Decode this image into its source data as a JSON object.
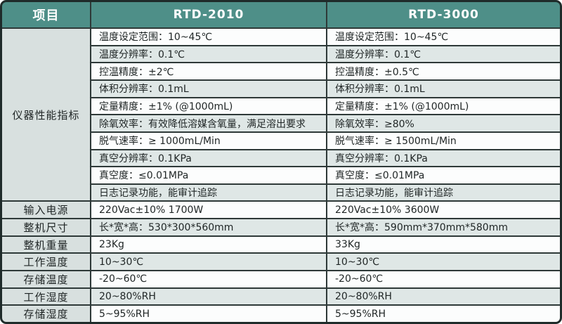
{
  "colors": {
    "header_teal": "#4e8f88",
    "label_gray": "#d8e0df",
    "row_alt_gray": "#dfe7e6",
    "row_white": "#fcfdfd",
    "border_dark": "#2e3938",
    "header_text": "#ffffff",
    "body_text": "#1f2525"
  },
  "header": {
    "project": "项目",
    "model_a": "RTD-2010",
    "model_b": "RTD-3000"
  },
  "performance": {
    "category_label": "仪器性能指标",
    "rows": [
      {
        "a": "温度设定范围：10~45℃",
        "b": "温度设定范围：10~45℃"
      },
      {
        "a": "温度分辨率：0.1℃",
        "b": "温度分辨率：0.1℃"
      },
      {
        "a": "控温精度：±2℃",
        "b": "控温精度：±0.5℃"
      },
      {
        "a": "体积分辨率：0.1mL",
        "b": "体积分辨率：0.1mL"
      },
      {
        "a": "定量精度：±1% (@1000mL)",
        "b": "定量精度：±1% (@1000mL)"
      },
      {
        "a": "除氧效率：有效降低溶媒含氧量，满足溶出要求",
        "b": "除氧效率：≥80%"
      },
      {
        "a": "脱气速率：≥ 1000mL/Min",
        "b": "脱气速率：≥ 1500mL/Min"
      },
      {
        "a": "真空分辨率：0.1KPa",
        "b": "真空分辨率：0.1KPa"
      },
      {
        "a": "真空度：≤0.01MPa",
        "b": "真空度：≤0.01MPa"
      },
      {
        "a": "日志记录功能，能审计追踪",
        "b": "日志记录功能，能审计追踪"
      }
    ]
  },
  "specs": {
    "rows": [
      {
        "label": "输入电源",
        "a": "220Vac±10% 1700W",
        "b": "220Vac±10% 3600W"
      },
      {
        "label": "整机尺寸",
        "a": "长*宽*高：530*300*560mm",
        "b": "长*宽*高：590mm*370mm*580mm"
      },
      {
        "label": "整机重量",
        "a": "23Kg",
        "b": "33Kg"
      },
      {
        "label": "工作温度",
        "a": "10~30℃",
        "b": "10~30℃"
      },
      {
        "label": "存储温度",
        "a": "-20~60℃",
        "b": "-20~60℃"
      },
      {
        "label": "工作湿度",
        "a": "20~80%RH",
        "b": "20~80%RH"
      },
      {
        "label": "存储湿度",
        "a": "5~95%RH",
        "b": "5~95%RH"
      }
    ]
  }
}
